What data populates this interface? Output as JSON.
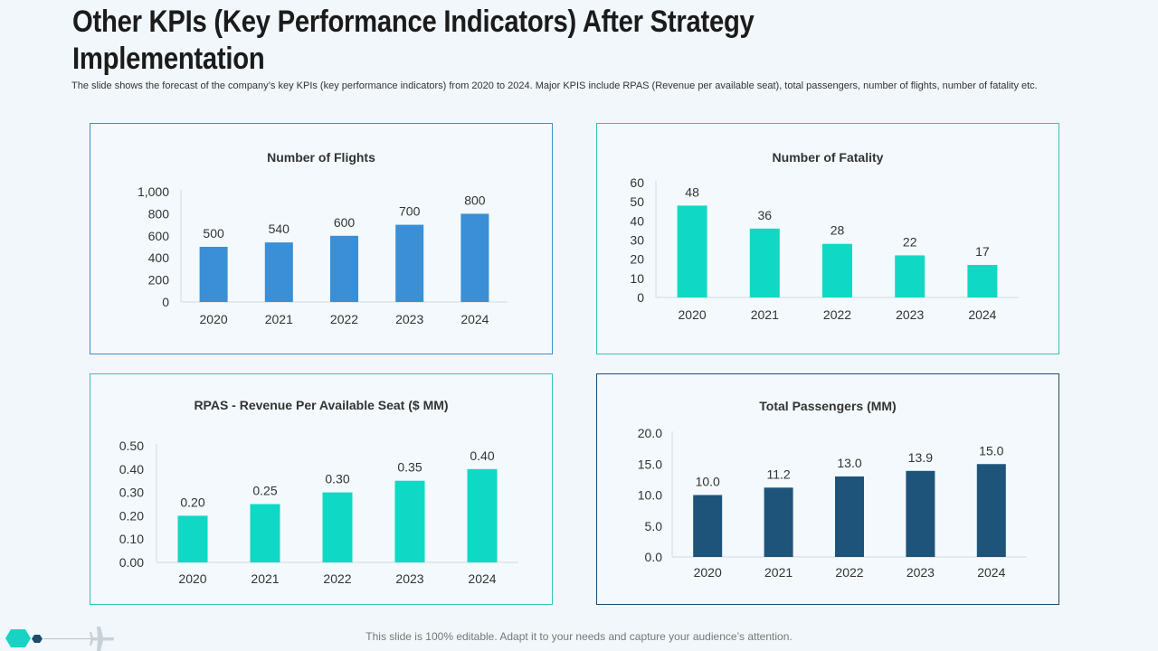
{
  "page": {
    "title": "Other KPIs (Key Performance Indicators) After Strategy Implementation",
    "subtitle": "The slide shows the forecast of the company’s key KPIs (key performance indicators) from 2020 to 2024. Major KPIS include RPAS (Revenue per available seat), total passengers, number of flights, number of fatality etc.",
    "footer": "This slide is 100% editable. Adapt it to your needs and capture your audience’s attention."
  },
  "icons": {
    "hexagon": "hexagon-icon",
    "dot": "hexagon-small-icon",
    "plane": "airplane-icon"
  },
  "chart_data": [
    {
      "type": "bar",
      "title": "Number of Flights",
      "categories": [
        "2020",
        "2021",
        "2022",
        "2023",
        "2024"
      ],
      "values": [
        500,
        540,
        600,
        700,
        800
      ],
      "value_labels": [
        "500",
        "540",
        "600",
        "700",
        "800"
      ],
      "ylim": [
        0,
        1000
      ],
      "yticks": [
        0,
        200,
        400,
        600,
        800,
        1000
      ],
      "ytick_labels": [
        "0",
        "200",
        "400",
        "600",
        "800",
        "1,000"
      ],
      "color": "#3a8fd6",
      "xlabel": "",
      "ylabel": ""
    },
    {
      "type": "bar",
      "title": "Number of Fatality",
      "categories": [
        "2020",
        "2021",
        "2022",
        "2023",
        "2024"
      ],
      "values": [
        48,
        36,
        28,
        22,
        17
      ],
      "value_labels": [
        "48",
        "36",
        "28",
        "22",
        "17"
      ],
      "ylim": [
        0,
        60
      ],
      "yticks": [
        0,
        10,
        20,
        30,
        40,
        50,
        60
      ],
      "ytick_labels": [
        "0",
        "10",
        "20",
        "30",
        "40",
        "50",
        "60"
      ],
      "color": "#0fd9c4",
      "xlabel": "",
      "ylabel": ""
    },
    {
      "type": "bar",
      "title": "RPAS - Revenue Per Available Seat ($ MM)",
      "categories": [
        "2020",
        "2021",
        "2022",
        "2023",
        "2024"
      ],
      "values": [
        0.2,
        0.25,
        0.3,
        0.35,
        0.4
      ],
      "value_labels": [
        "0.20",
        "0.25",
        "0.30",
        "0.35",
        "0.40"
      ],
      "ylim": [
        0,
        0.5
      ],
      "yticks": [
        0,
        0.1,
        0.2,
        0.3,
        0.4,
        0.5
      ],
      "ytick_labels": [
        "0.00",
        "0.10",
        "0.20",
        "0.30",
        "0.40",
        "0.50"
      ],
      "color": "#0fd9c4",
      "xlabel": "",
      "ylabel": ""
    },
    {
      "type": "bar",
      "title": "Total Passengers (MM)",
      "categories": [
        "2020",
        "2021",
        "2022",
        "2023",
        "2024"
      ],
      "values": [
        10.0,
        11.2,
        13.0,
        13.9,
        15.0
      ],
      "value_labels": [
        "10.0",
        "11.2",
        "13.0",
        "13.9",
        "15.0"
      ],
      "ylim": [
        0,
        20
      ],
      "yticks": [
        0,
        5,
        10,
        15,
        20
      ],
      "ytick_labels": [
        "0.0",
        "5.0",
        "10.0",
        "15.0",
        "20.0"
      ],
      "color": "#1f547a",
      "xlabel": "",
      "ylabel": ""
    }
  ]
}
